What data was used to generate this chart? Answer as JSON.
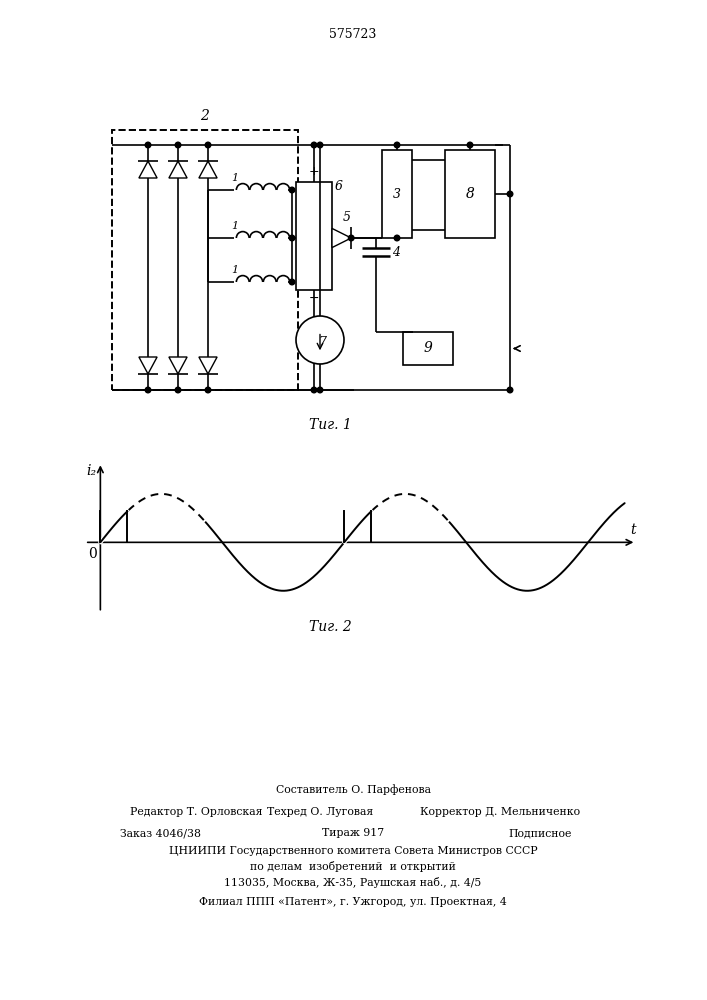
{
  "patent_number": "575723",
  "fig1_caption": "Τиг. 1",
  "fig2_caption": "Τиг. 2",
  "fig2_ylabel": "i₂",
  "fig2_xlabel": "t",
  "fig2_origin": "0",
  "bottom_line1": "Составитель О. Парфенова",
  "bottom_line2_left": "Редактор Т. Орловская",
  "bottom_line2_mid": "Техред О. Луговая",
  "bottom_line2_right": "Корректор Д. Мельниченко",
  "bottom_line3_left": "Заказ 4046/38",
  "bottom_line3_mid": "Тираж 917",
  "bottom_line3_right": "Подписное",
  "bottom_line4": "ЦНИИПИ Государственного комитета Совета Министров СССР",
  "bottom_line5": "по делам  изобретений  и открытий",
  "bottom_line6": "113035, Москва, Ж-35, Раушская наб., д. 4/5",
  "bottom_line7": "Филиал ППП «Патент», г. Ужгород, ул. Проектная, 4",
  "bg_color": "#ffffff",
  "lc": "#000000"
}
